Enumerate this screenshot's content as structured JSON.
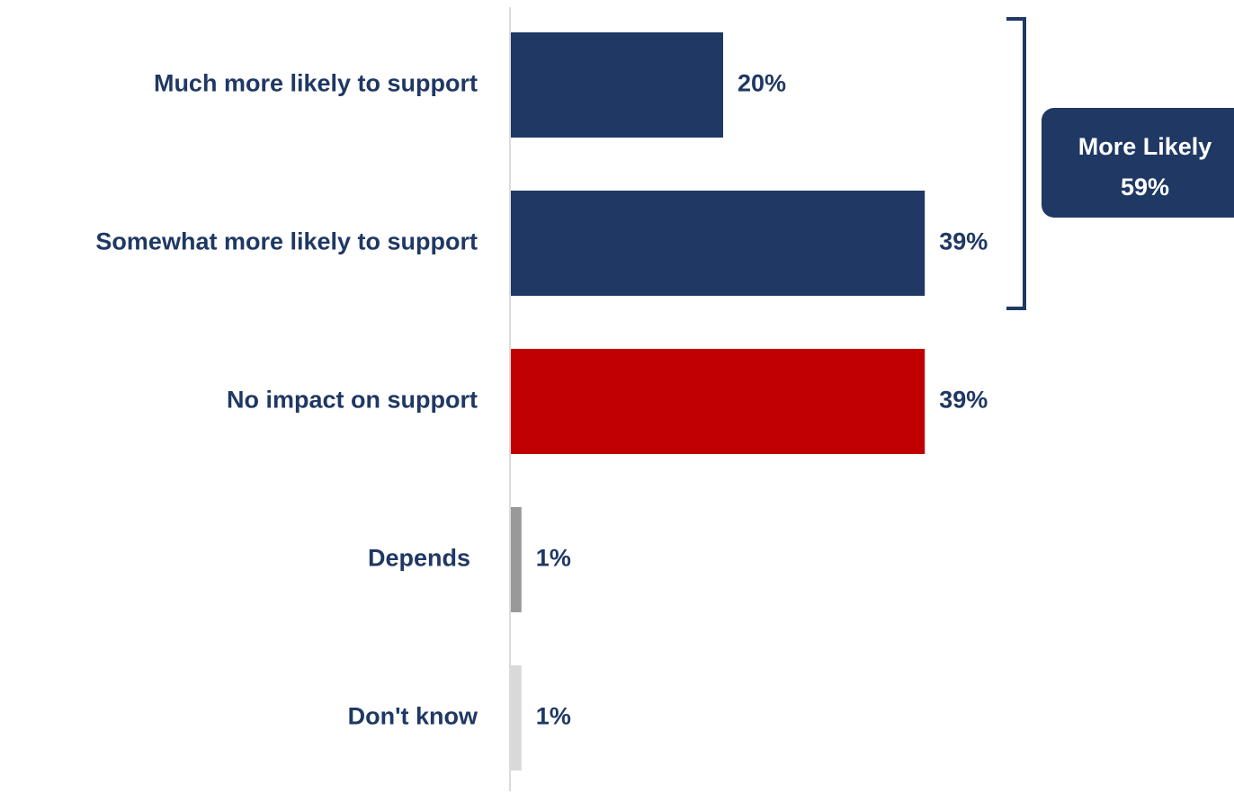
{
  "chart_data": {
    "type": "bar",
    "orientation": "horizontal",
    "categories": [
      "Much more likely to support",
      "Somewhat more likely to support",
      "No impact on support",
      "Depends",
      "Don't know"
    ],
    "values": [
      20,
      39,
      39,
      1,
      1
    ],
    "value_labels": [
      "20%",
      "39%",
      "39%",
      "1%",
      "1%"
    ],
    "bar_colors": [
      "#1f3864",
      "#1f3864",
      "#c00000",
      "#999999",
      "#d9d9d9"
    ],
    "xlim": [
      0,
      50
    ],
    "grid": false,
    "legend": "none",
    "title": "",
    "xlabel": "",
    "ylabel": "",
    "annotation": {
      "bracket_rows": [
        0,
        1
      ],
      "line1": "More Likely",
      "line2": "59%",
      "value": 59,
      "color": "#1f3864"
    }
  }
}
